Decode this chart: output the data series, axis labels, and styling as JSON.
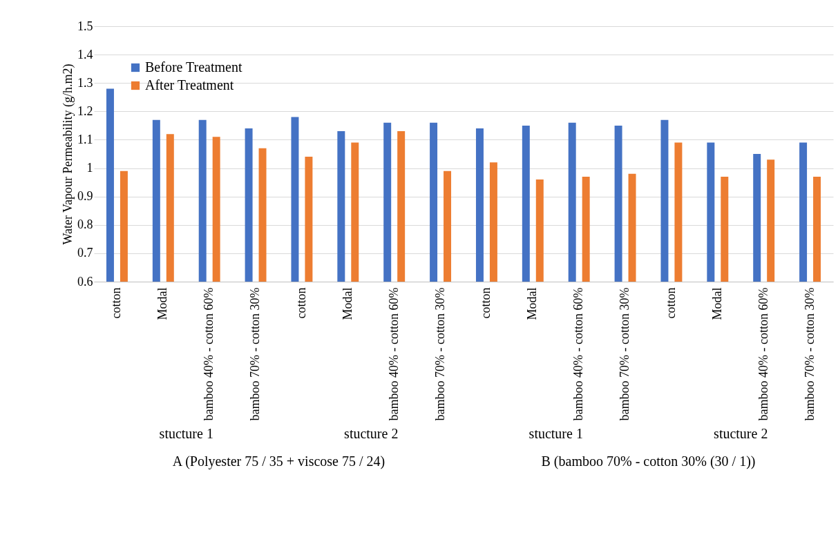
{
  "chart_data": {
    "type": "bar",
    "ylabel": "Water Vapour Permeability (g/h.m2)",
    "categories": [
      "cotton",
      "Modal",
      "bamboo 40% - cotton 60%",
      "bamboo 70% - cotton 30%",
      "cotton",
      "Modal",
      "bamboo 40% - cotton 60%",
      "bamboo 70% - cotton 30%",
      "cotton",
      "Modal",
      "bamboo 40% - cotton 60%",
      "bamboo 70% - cotton 30%",
      "cotton",
      "Modal",
      "bamboo 40% - cotton 60%",
      "bamboo 70% - cotton 30%"
    ],
    "series": [
      {
        "name": "Before Treatment",
        "color": "#4472c4",
        "values": [
          1.28,
          1.17,
          1.17,
          1.14,
          1.18,
          1.13,
          1.16,
          1.16,
          1.14,
          1.15,
          1.16,
          1.15,
          1.17,
          1.09,
          1.05,
          1.09
        ]
      },
      {
        "name": "After Treatment",
        "color": "#ed7d31",
        "values": [
          0.99,
          1.12,
          1.11,
          1.07,
          1.04,
          1.09,
          1.13,
          0.99,
          1.02,
          0.96,
          0.97,
          0.98,
          1.09,
          0.97,
          1.03,
          0.97
        ]
      }
    ],
    "ylim": [
      0.6,
      1.5
    ],
    "yticks": [
      0.6,
      0.7,
      0.8,
      0.9,
      1,
      1.1,
      1.2,
      1.3,
      1.4,
      1.5
    ],
    "grid": true,
    "legend": "top left",
    "annotations": [
      "stucture 1",
      "stucture 2",
      "stucture 1",
      "stucture 2",
      "A (Polyester 75 / 35 + viscose  75 / 24)",
      "B (bamboo 70% - cotton 30% (30 / 1))"
    ]
  }
}
